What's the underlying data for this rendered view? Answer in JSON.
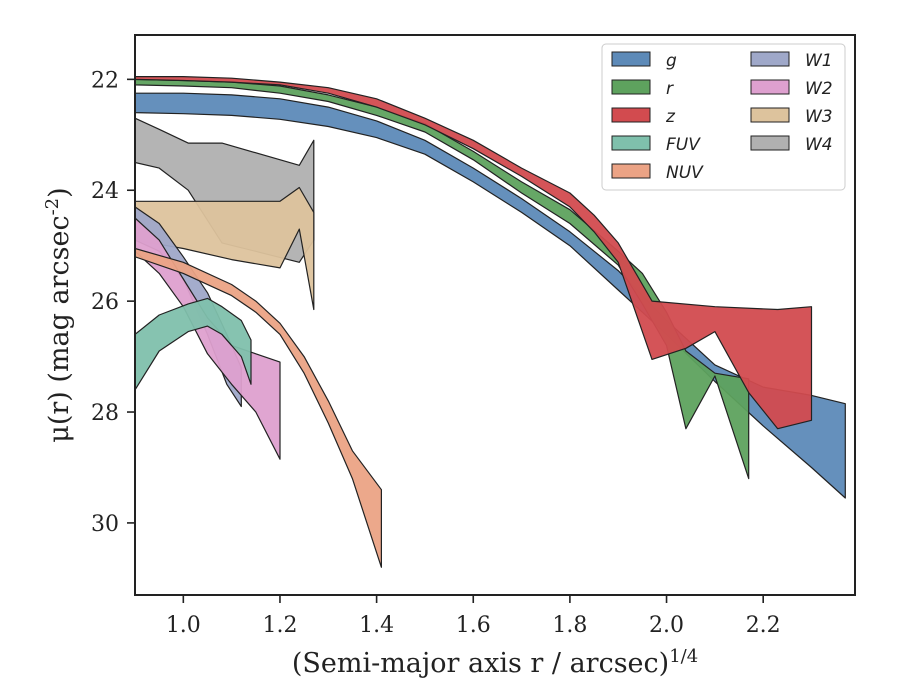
{
  "chart_data": {
    "type": "area",
    "xlabel": "(Semi-major axis r / arcsec)^{1/4}",
    "ylabel": "μ(r) (mag arcsec^{-2})",
    "xlim": [
      0.9,
      2.39
    ],
    "ylim": [
      31.3,
      21.2
    ],
    "y_inverted": true,
    "xticks": [
      1.0,
      1.2,
      1.4,
      1.6,
      1.8,
      2.0,
      2.2
    ],
    "xtick_labels": [
      "1.0",
      "1.2",
      "1.4",
      "1.6",
      "1.8",
      "2.0",
      "2.2"
    ],
    "yticks": [
      22,
      24,
      26,
      28,
      30
    ],
    "ytick_labels": [
      "22",
      "24",
      "26",
      "28",
      "30"
    ],
    "grid": false,
    "legend_placement": "top-right",
    "legend_columns": 2,
    "series": [
      {
        "name": "W4",
        "color": "#b0b0b0",
        "upper": [
          [
            0.9,
            22.7
          ],
          [
            0.95,
            22.9
          ],
          [
            1.01,
            23.15
          ],
          [
            1.08,
            23.15
          ],
          [
            1.24,
            23.55
          ],
          [
            1.27,
            23.1
          ]
        ],
        "lower": [
          [
            0.9,
            23.5
          ],
          [
            0.95,
            23.6
          ],
          [
            1.01,
            24.0
          ],
          [
            1.08,
            24.95
          ],
          [
            1.24,
            25.3
          ],
          [
            1.27,
            24.9
          ]
        ]
      },
      {
        "name": "W3",
        "color": "#ddc39d",
        "upper": [
          [
            0.9,
            24.2
          ],
          [
            1.0,
            24.2
          ],
          [
            1.1,
            24.2
          ],
          [
            1.2,
            24.2
          ],
          [
            1.24,
            23.95
          ],
          [
            1.27,
            24.4
          ]
        ],
        "lower": [
          [
            0.9,
            24.9
          ],
          [
            1.0,
            25.05
          ],
          [
            1.1,
            25.25
          ],
          [
            1.2,
            25.4
          ],
          [
            1.24,
            24.7
          ],
          [
            1.27,
            26.15
          ]
        ]
      },
      {
        "name": "W1",
        "color": "#9fa8c9",
        "upper": [
          [
            0.9,
            24.3
          ],
          [
            0.95,
            24.6
          ],
          [
            1.0,
            25.2
          ],
          [
            1.05,
            25.85
          ],
          [
            1.09,
            26.6
          ],
          [
            1.12,
            27.2
          ]
        ],
        "lower": [
          [
            0.9,
            24.9
          ],
          [
            0.95,
            25.1
          ],
          [
            1.0,
            25.6
          ],
          [
            1.05,
            26.6
          ],
          [
            1.09,
            27.5
          ],
          [
            1.12,
            27.9
          ]
        ]
      },
      {
        "name": "W2",
        "color": "#dea0cf",
        "upper": [
          [
            0.9,
            24.5
          ],
          [
            0.95,
            24.9
          ],
          [
            1.0,
            25.6
          ],
          [
            1.05,
            26.3
          ],
          [
            1.1,
            26.8
          ],
          [
            1.15,
            26.95
          ],
          [
            1.2,
            27.1
          ]
        ],
        "lower": [
          [
            0.9,
            25.1
          ],
          [
            0.95,
            25.5
          ],
          [
            1.0,
            26.1
          ],
          [
            1.05,
            26.95
          ],
          [
            1.1,
            27.5
          ],
          [
            1.15,
            28.0
          ],
          [
            1.2,
            28.85
          ]
        ]
      },
      {
        "name": "FUV",
        "color": "#7fc0ac",
        "upper": [
          [
            0.9,
            26.6
          ],
          [
            0.95,
            26.25
          ],
          [
            1.01,
            26.05
          ],
          [
            1.05,
            25.95
          ],
          [
            1.08,
            26.1
          ],
          [
            1.12,
            26.35
          ],
          [
            1.14,
            26.7
          ]
        ],
        "lower": [
          [
            0.9,
            27.6
          ],
          [
            0.95,
            26.9
          ],
          [
            1.01,
            26.55
          ],
          [
            1.05,
            26.45
          ],
          [
            1.08,
            26.6
          ],
          [
            1.12,
            27.0
          ],
          [
            1.14,
            27.5
          ]
        ]
      },
      {
        "name": "NUV",
        "color": "#eba385",
        "upper": [
          [
            0.9,
            25.05
          ],
          [
            1.0,
            25.3
          ],
          [
            1.1,
            25.7
          ],
          [
            1.15,
            26.0
          ],
          [
            1.2,
            26.4
          ],
          [
            1.25,
            27.0
          ],
          [
            1.3,
            27.8
          ],
          [
            1.35,
            28.7
          ],
          [
            1.41,
            29.4
          ]
        ],
        "lower": [
          [
            0.9,
            25.2
          ],
          [
            1.0,
            25.5
          ],
          [
            1.1,
            25.9
          ],
          [
            1.15,
            26.2
          ],
          [
            1.2,
            26.6
          ],
          [
            1.25,
            27.3
          ],
          [
            1.3,
            28.2
          ],
          [
            1.35,
            29.2
          ],
          [
            1.41,
            30.8
          ]
        ]
      },
      {
        "name": "g",
        "color": "#5d8ab8",
        "upper": [
          [
            0.9,
            22.25
          ],
          [
            1.0,
            22.25
          ],
          [
            1.1,
            22.28
          ],
          [
            1.2,
            22.35
          ],
          [
            1.3,
            22.5
          ],
          [
            1.4,
            22.75
          ],
          [
            1.5,
            23.1
          ],
          [
            1.6,
            23.6
          ],
          [
            1.7,
            24.15
          ],
          [
            1.8,
            24.75
          ],
          [
            1.9,
            25.45
          ],
          [
            2.0,
            26.35
          ],
          [
            2.1,
            27.15
          ],
          [
            2.2,
            27.55
          ],
          [
            2.3,
            27.7
          ],
          [
            2.37,
            27.85
          ]
        ],
        "lower": [
          [
            0.9,
            22.6
          ],
          [
            1.0,
            22.62
          ],
          [
            1.1,
            22.65
          ],
          [
            1.2,
            22.72
          ],
          [
            1.3,
            22.85
          ],
          [
            1.4,
            23.05
          ],
          [
            1.5,
            23.35
          ],
          [
            1.6,
            23.85
          ],
          [
            1.7,
            24.4
          ],
          [
            1.8,
            25.0
          ],
          [
            1.9,
            25.8
          ],
          [
            2.0,
            26.6
          ],
          [
            2.1,
            27.45
          ],
          [
            2.2,
            28.25
          ],
          [
            2.3,
            29.0
          ],
          [
            2.37,
            29.55
          ]
        ]
      },
      {
        "name": "r",
        "color": "#5ea25e",
        "upper": [
          [
            0.9,
            22.0
          ],
          [
            1.0,
            22.02
          ],
          [
            1.1,
            22.05
          ],
          [
            1.2,
            22.12
          ],
          [
            1.3,
            22.28
          ],
          [
            1.4,
            22.5
          ],
          [
            1.5,
            22.8
          ],
          [
            1.6,
            23.3
          ],
          [
            1.7,
            23.85
          ],
          [
            1.8,
            24.35
          ],
          [
            1.9,
            25.1
          ],
          [
            1.95,
            25.5
          ],
          [
            2.0,
            26.2
          ],
          [
            2.04,
            26.9
          ],
          [
            2.1,
            27.3
          ],
          [
            2.17,
            27.4
          ]
        ],
        "lower": [
          [
            0.9,
            22.1
          ],
          [
            1.0,
            22.12
          ],
          [
            1.1,
            22.15
          ],
          [
            1.2,
            22.25
          ],
          [
            1.3,
            22.4
          ],
          [
            1.4,
            22.65
          ],
          [
            1.5,
            22.95
          ],
          [
            1.6,
            23.45
          ],
          [
            1.7,
            24.05
          ],
          [
            1.8,
            24.6
          ],
          [
            1.9,
            25.35
          ],
          [
            1.95,
            26.05
          ],
          [
            2.0,
            26.8
          ],
          [
            2.04,
            28.3
          ],
          [
            2.1,
            27.35
          ],
          [
            2.17,
            29.2
          ]
        ]
      },
      {
        "name": "z",
        "color": "#d24b4f",
        "upper": [
          [
            0.9,
            21.95
          ],
          [
            1.0,
            21.95
          ],
          [
            1.1,
            21.98
          ],
          [
            1.2,
            22.05
          ],
          [
            1.3,
            22.15
          ],
          [
            1.4,
            22.35
          ],
          [
            1.5,
            22.7
          ],
          [
            1.6,
            23.1
          ],
          [
            1.7,
            23.6
          ],
          [
            1.8,
            24.05
          ],
          [
            1.85,
            24.45
          ],
          [
            1.9,
            24.95
          ],
          [
            1.97,
            26.0
          ],
          [
            2.1,
            26.1
          ],
          [
            2.23,
            26.15
          ],
          [
            2.3,
            26.1
          ]
        ],
        "lower": [
          [
            0.9,
            22.0
          ],
          [
            1.0,
            22.02
          ],
          [
            1.1,
            22.05
          ],
          [
            1.2,
            22.1
          ],
          [
            1.3,
            22.25
          ],
          [
            1.4,
            22.5
          ],
          [
            1.5,
            22.82
          ],
          [
            1.6,
            23.25
          ],
          [
            1.7,
            23.75
          ],
          [
            1.8,
            24.3
          ],
          [
            1.85,
            24.75
          ],
          [
            1.9,
            25.3
          ],
          [
            1.97,
            27.05
          ],
          [
            2.04,
            26.85
          ],
          [
            2.1,
            26.55
          ],
          [
            2.17,
            27.65
          ],
          [
            2.23,
            28.3
          ],
          [
            2.3,
            28.15
          ]
        ]
      }
    ],
    "legend": [
      [
        "g",
        "r",
        "z",
        "FUV",
        "NUV"
      ],
      [
        "W1",
        "W2",
        "W3",
        "W4"
      ]
    ]
  }
}
